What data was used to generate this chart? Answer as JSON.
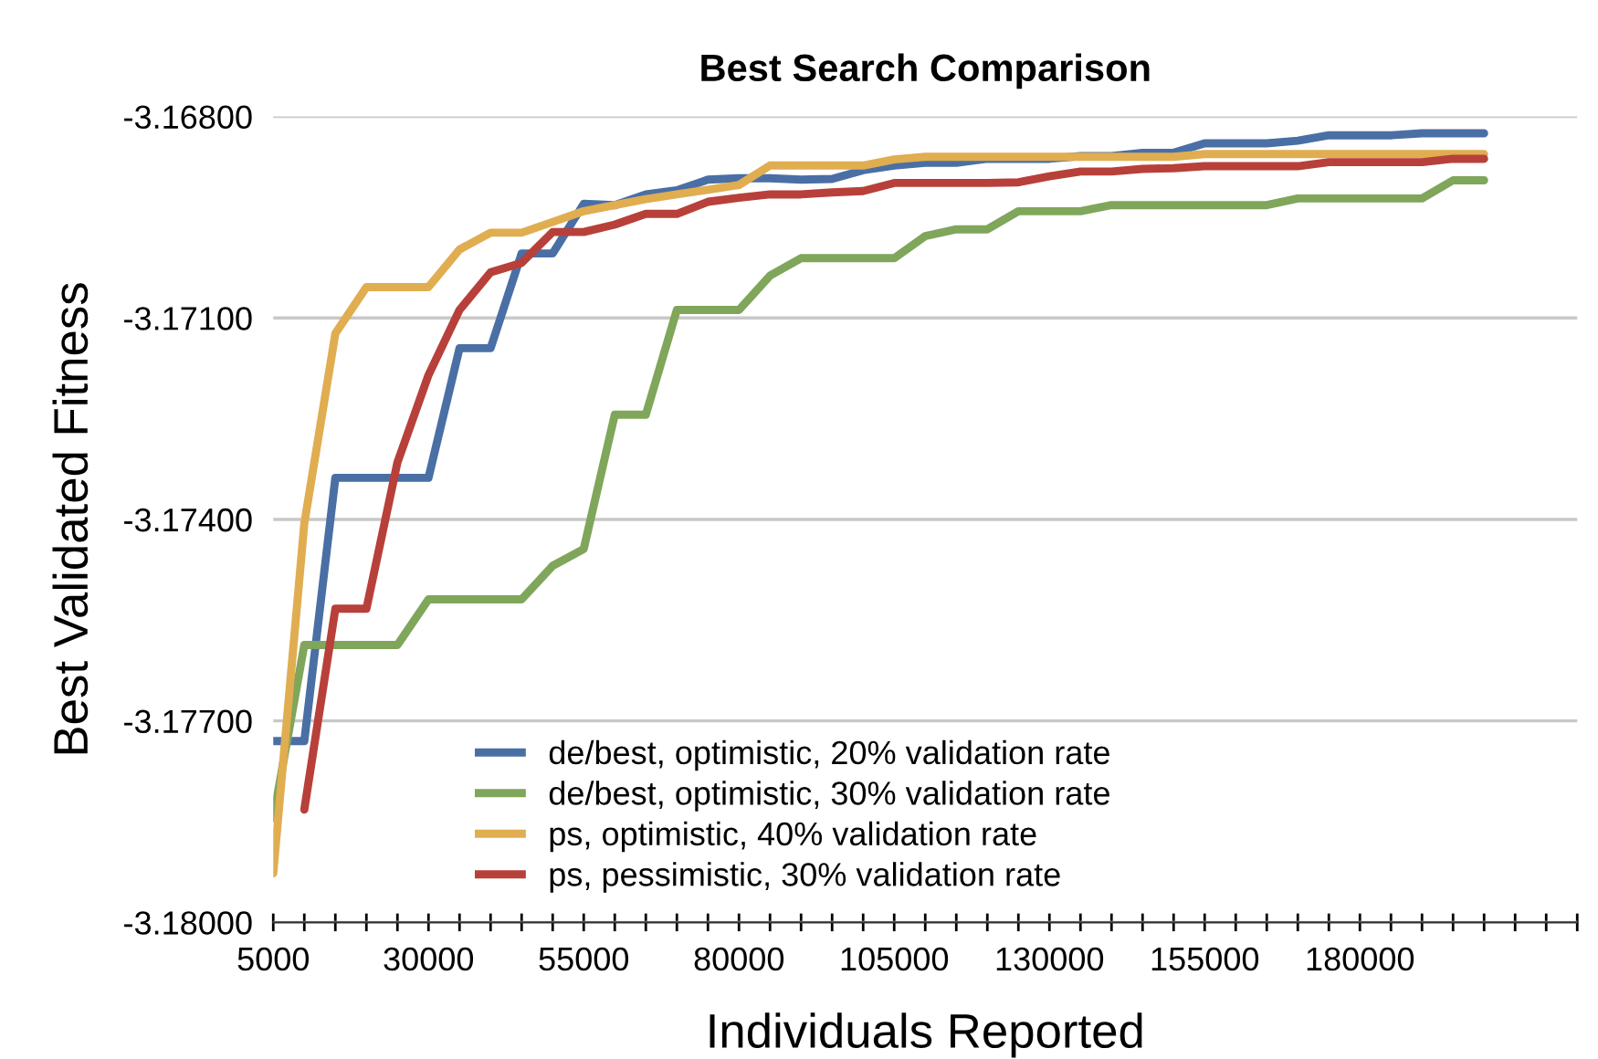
{
  "chart_data": {
    "type": "line",
    "title": "Best Search Comparison",
    "xlabel": "Individuals Reported",
    "ylabel": "Best Validated Fitness",
    "x": [
      5000,
      10000,
      15000,
      20000,
      25000,
      30000,
      35000,
      40000,
      45000,
      50000,
      55000,
      60000,
      65000,
      70000,
      75000,
      80000,
      85000,
      90000,
      95000,
      100000,
      105000,
      110000,
      115000,
      120000,
      125000,
      130000,
      135000,
      140000,
      145000,
      150000,
      155000,
      160000,
      165000,
      170000,
      175000,
      180000,
      185000,
      190000,
      195000,
      200000
    ],
    "series": [
      {
        "name": "de/best, optimistic, 20% validation rate",
        "color": "#4a6fa5",
        "values": [
          -3.1773,
          -3.1773,
          -3.17338,
          -3.17338,
          -3.17338,
          -3.17338,
          -3.17145,
          -3.17145,
          -3.17004,
          -3.17004,
          -3.1693,
          -3.16932,
          -3.16916,
          -3.1691,
          -3.16894,
          -3.16892,
          -3.16892,
          -3.16894,
          -3.16893,
          -3.1688,
          -3.16873,
          -3.16869,
          -3.16869,
          -3.16863,
          -3.16863,
          -3.16863,
          -3.16859,
          -3.16859,
          -3.16854,
          -3.16854,
          -3.1684,
          -3.1684,
          -3.1684,
          -3.16836,
          -3.16828,
          -3.16828,
          -3.16828,
          -3.16825,
          -3.16825,
          -3.16825
        ]
      },
      {
        "name": "de/best, optimistic, 30% validation rate",
        "color": "#7fa65a",
        "values": [
          -3.17845,
          -3.17587,
          -3.17587,
          -3.17587,
          -3.17587,
          -3.17519,
          -3.17519,
          -3.17519,
          -3.17519,
          -3.17469,
          -3.17444,
          -3.17244,
          -3.17244,
          -3.17088,
          -3.17088,
          -3.17088,
          -3.17037,
          -3.17011,
          -3.17011,
          -3.17011,
          -3.17011,
          -3.16978,
          -3.16968,
          -3.16968,
          -3.16941,
          -3.16941,
          -3.16941,
          -3.16932,
          -3.16932,
          -3.16932,
          -3.16932,
          -3.16932,
          -3.16932,
          -3.16922,
          -3.16922,
          -3.16922,
          -3.16922,
          -3.16922,
          -3.16895,
          -3.16895
        ]
      },
      {
        "name": "ps, optimistic, 40% validation rate",
        "color": "#e0ad50",
        "values": [
          -3.17927,
          -3.17406,
          -3.17123,
          -3.17054,
          -3.17054,
          -3.17054,
          -3.16998,
          -3.16973,
          -3.16973,
          -3.16957,
          -3.16941,
          -3.16932,
          -3.16923,
          -3.16916,
          -3.16909,
          -3.16902,
          -3.16873,
          -3.16873,
          -3.16873,
          -3.16873,
          -3.16864,
          -3.1686,
          -3.1686,
          -3.1686,
          -3.1686,
          -3.1686,
          -3.1686,
          -3.1686,
          -3.1686,
          -3.1686,
          -3.16856,
          -3.16856,
          -3.16856,
          -3.16856,
          -3.16856,
          -3.16856,
          -3.16856,
          -3.16856,
          -3.16856,
          -3.16856
        ]
      },
      {
        "name": "ps, pessimistic, 30% validation rate",
        "color": "#b8403a",
        "values": [
          null,
          -3.17832,
          -3.17533,
          -3.17533,
          -3.17315,
          -3.17185,
          -3.17088,
          -3.17032,
          -3.17018,
          -3.16972,
          -3.16972,
          -3.16961,
          -3.16945,
          -3.16945,
          -3.16927,
          -3.16921,
          -3.16916,
          -3.16916,
          -3.16913,
          -3.16911,
          -3.16899,
          -3.16899,
          -3.16899,
          -3.16899,
          -3.16898,
          -3.16889,
          -3.16882,
          -3.16882,
          -3.16878,
          -3.16877,
          -3.16874,
          -3.16874,
          -3.16874,
          -3.16874,
          -3.16868,
          -3.16868,
          -3.16868,
          -3.16868,
          -3.16863,
          -3.16863
        ]
      }
    ],
    "xlim": [
      5000,
      215000
    ],
    "xticks": [
      5000,
      {
        "value": 10000,
        "label": null
      },
      {
        "value": 15000,
        "label": null
      },
      {
        "value": 20000,
        "label": null
      },
      {
        "value": 25000,
        "label": null
      },
      30000,
      {
        "value": 35000,
        "label": null
      },
      {
        "value": 40000,
        "label": null
      },
      {
        "value": 45000,
        "label": null
      },
      {
        "value": 50000,
        "label": null
      },
      55000,
      {
        "value": 60000,
        "label": null
      },
      {
        "value": 65000,
        "label": null
      },
      {
        "value": 70000,
        "label": null
      },
      {
        "value": 75000,
        "label": null
      },
      80000,
      {
        "value": 85000,
        "label": null
      },
      {
        "value": 90000,
        "label": null
      },
      {
        "value": 95000,
        "label": null
      },
      {
        "value": 100000,
        "label": null
      },
      105000,
      {
        "value": 110000,
        "label": null
      },
      {
        "value": 115000,
        "label": null
      },
      {
        "value": 120000,
        "label": null
      },
      {
        "value": 125000,
        "label": null
      },
      130000,
      {
        "value": 135000,
        "label": null
      },
      {
        "value": 140000,
        "label": null
      },
      {
        "value": 145000,
        "label": null
      },
      {
        "value": 150000,
        "label": null
      },
      155000,
      {
        "value": 160000,
        "label": null
      },
      {
        "value": 165000,
        "label": null
      },
      {
        "value": 170000,
        "label": null
      },
      {
        "value": 175000,
        "label": null
      },
      180000,
      {
        "value": 185000,
        "label": null
      },
      {
        "value": 190000,
        "label": null
      },
      {
        "value": 195000,
        "label": null
      },
      {
        "value": 200000,
        "label": null
      },
      {
        "value": 205000,
        "label": null
      },
      {
        "value": 210000,
        "label": null
      },
      {
        "value": 215000,
        "label": null
      }
    ],
    "ylim": [
      -3.18,
      -3.168
    ],
    "yticks": [
      {
        "value": -3.18,
        "label": "-3.18000"
      },
      {
        "value": -3.177,
        "label": "-3.17700"
      },
      {
        "value": -3.174,
        "label": "-3.17400"
      },
      {
        "value": -3.171,
        "label": "-3.17100"
      },
      {
        "value": -3.168,
        "label": "-3.16800"
      }
    ],
    "grid": "y",
    "legend": "bottom",
    "marker": "none",
    "line_style": "solid"
  }
}
